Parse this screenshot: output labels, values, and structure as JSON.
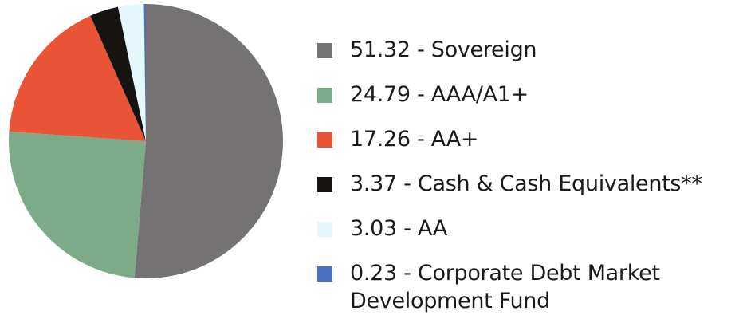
{
  "chart_data": {
    "type": "pie",
    "start_angle_deg": 0,
    "direction": "clockwise",
    "slices": [
      {
        "value": 51.32,
        "label": "51.32 - Sovereign",
        "color": "#747272"
      },
      {
        "value": 24.79,
        "label": "24.79 - AAA/A1+",
        "color": "#7eab87"
      },
      {
        "value": 17.26,
        "label": "17.26 - AA+",
        "color": "#e95336"
      },
      {
        "value": 3.37,
        "label": "3.37 - Cash & Cash Equivalents**",
        "color": "#161410"
      },
      {
        "value": 3.03,
        "label": "3.03 - AA",
        "color": "#e4f8fb"
      },
      {
        "value": 0.23,
        "label": "0.23 - Corporate Debt Market\n         Development Fund",
        "color": "#4a70c0"
      }
    ],
    "legend_position": "right"
  }
}
